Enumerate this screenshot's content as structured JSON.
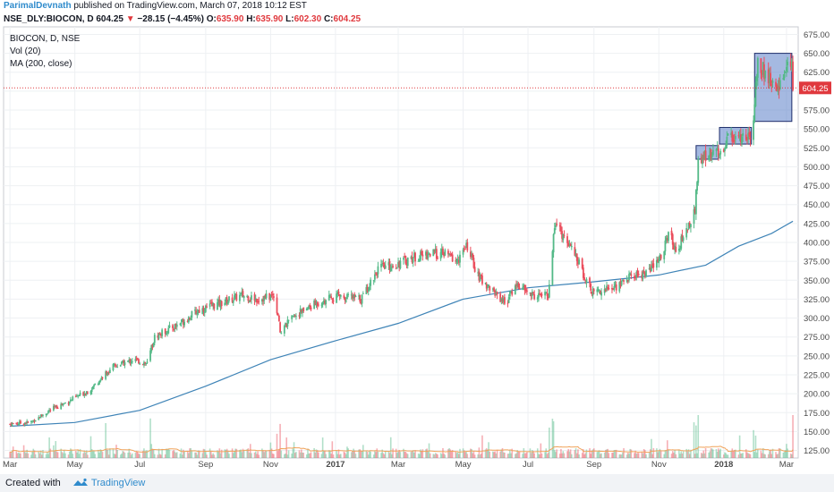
{
  "header": {
    "author": "ParimalDevnath",
    "published_text": " published on TradingView.com, March 07, 2018 10:12 EST",
    "symbol": "NSE_DLY:BIOCON, D",
    "last": "604.25",
    "change": "−28.15 (−4.45%)",
    "o_label": "O:",
    "o_value": "635.90",
    "h_label": "H:",
    "h_value": "635.90",
    "l_label": "L:",
    "l_value": "602.30",
    "c_label": "C:",
    "c_value": "604.25"
  },
  "legend": {
    "line1": "BIOCON, D, NSE",
    "line2": "Vol (20)",
    "line3": "MA (200, close)"
  },
  "footer": {
    "created_with": "Created with",
    "brand": "TradingView"
  },
  "colors": {
    "up": "#53b987",
    "down": "#eb4d5c",
    "ma": "#3f84b7",
    "box_fill": "#5b7fc9",
    "box_stroke": "#1e2d6b",
    "price_line": "#e0393e",
    "grid": "#eef0f3"
  },
  "chart_data": {
    "type": "candlestick",
    "ylim": [
      115,
      685
    ],
    "y_ticks": [
      125,
      150,
      175,
      200,
      225,
      250,
      275,
      300,
      325,
      350,
      375,
      400,
      425,
      450,
      475,
      500,
      525,
      550,
      575,
      600,
      625,
      650,
      675
    ],
    "y_tick_labels": [
      "125.00",
      "150.00",
      "175.00",
      "200.00",
      "225.00",
      "250.00",
      "275.00",
      "300.00",
      "325.00",
      "350.00",
      "375.00",
      "400.00",
      "425.00",
      "450.00",
      "475.00",
      "500.00",
      "525.00",
      "550.00",
      "575.00",
      "600.00",
      "625.00",
      "650.00",
      "675.00"
    ],
    "x_ticks": [
      {
        "label": "Mar",
        "date": "2016-03-01",
        "bold": false
      },
      {
        "label": "May",
        "date": "2016-05-01",
        "bold": false
      },
      {
        "label": "Jul",
        "date": "2016-07-01",
        "bold": false
      },
      {
        "label": "Sep",
        "date": "2016-09-01",
        "bold": false
      },
      {
        "label": "Nov",
        "date": "2016-11-01",
        "bold": false
      },
      {
        "label": "2017",
        "date": "2017-01-01",
        "bold": true
      },
      {
        "label": "Mar",
        "date": "2017-03-01",
        "bold": false
      },
      {
        "label": "May",
        "date": "2017-05-01",
        "bold": false
      },
      {
        "label": "Jul",
        "date": "2017-07-01",
        "bold": false
      },
      {
        "label": "Sep",
        "date": "2017-09-01",
        "bold": false
      },
      {
        "label": "Nov",
        "date": "2017-11-01",
        "bold": false
      },
      {
        "label": "2018",
        "date": "2018-01-01",
        "bold": true
      },
      {
        "label": "Mar",
        "date": "2018-03-01",
        "bold": false
      }
    ],
    "last_price": 604.25,
    "last_price_label": "604.25",
    "price_path": [
      [
        "2016-03-01",
        160
      ],
      [
        "2016-03-20",
        162
      ],
      [
        "2016-04-10",
        180
      ],
      [
        "2016-04-25",
        190
      ],
      [
        "2016-05-15",
        205
      ],
      [
        "2016-06-05",
        235
      ],
      [
        "2016-06-25",
        245
      ],
      [
        "2016-07-08",
        240
      ],
      [
        "2016-07-15",
        275
      ],
      [
        "2016-08-10",
        295
      ],
      [
        "2016-08-25",
        310
      ],
      [
        "2016-09-15",
        320
      ],
      [
        "2016-10-05",
        330
      ],
      [
        "2016-10-20",
        325
      ],
      [
        "2016-11-05",
        330
      ],
      [
        "2016-11-10",
        282
      ],
      [
        "2016-11-25",
        305
      ],
      [
        "2016-12-15",
        320
      ],
      [
        "2017-01-05",
        330
      ],
      [
        "2017-01-25",
        325
      ],
      [
        "2017-02-10",
        365
      ],
      [
        "2017-02-25",
        370
      ],
      [
        "2017-03-15",
        380
      ],
      [
        "2017-03-30",
        385
      ],
      [
        "2017-04-15",
        385
      ],
      [
        "2017-04-25",
        375
      ],
      [
        "2017-05-05",
        395
      ],
      [
        "2017-05-15",
        355
      ],
      [
        "2017-05-30",
        335
      ],
      [
        "2017-06-10",
        320
      ],
      [
        "2017-06-20",
        345
      ],
      [
        "2017-07-05",
        330
      ],
      [
        "2017-07-20",
        330
      ],
      [
        "2017-07-26",
        425
      ],
      [
        "2017-08-05",
        405
      ],
      [
        "2017-08-15",
        380
      ],
      [
        "2017-08-30",
        335
      ],
      [
        "2017-09-20",
        340
      ],
      [
        "2017-10-05",
        355
      ],
      [
        "2017-10-20",
        360
      ],
      [
        "2017-11-01",
        375
      ],
      [
        "2017-11-10",
        410
      ],
      [
        "2017-11-18",
        390
      ],
      [
        "2017-11-28",
        420
      ],
      [
        "2017-12-05",
        440
      ],
      [
        "2017-12-08",
        505
      ],
      [
        "2017-12-20",
        520
      ],
      [
        "2017-12-28",
        515
      ],
      [
        "2018-01-05",
        540
      ],
      [
        "2018-01-20",
        540
      ],
      [
        "2018-01-28",
        545
      ],
      [
        "2018-02-02",
        640
      ],
      [
        "2018-02-10",
        620
      ],
      [
        "2018-02-20",
        600
      ],
      [
        "2018-02-25",
        625
      ],
      [
        "2018-03-01",
        628
      ],
      [
        "2018-03-06",
        632
      ],
      [
        "2018-03-07",
        604.25
      ]
    ],
    "ma_path": [
      [
        "2016-03-01",
        157
      ],
      [
        "2016-05-01",
        162
      ],
      [
        "2016-07-01",
        178
      ],
      [
        "2016-09-01",
        210
      ],
      [
        "2016-11-01",
        245
      ],
      [
        "2017-01-01",
        270
      ],
      [
        "2017-03-01",
        293
      ],
      [
        "2017-05-01",
        325
      ],
      [
        "2017-07-01",
        340
      ],
      [
        "2017-09-01",
        348
      ],
      [
        "2017-11-01",
        357
      ],
      [
        "2017-12-15",
        370
      ],
      [
        "2018-01-15",
        395
      ],
      [
        "2018-02-15",
        412
      ],
      [
        "2018-03-07",
        428
      ]
    ],
    "volume_max_value": 1,
    "boxes": [
      {
        "from": "2017-12-06",
        "to": "2017-12-27",
        "low": 510,
        "high": 528
      },
      {
        "from": "2017-12-28",
        "to": "2018-01-27",
        "low": 530,
        "high": 552
      },
      {
        "from": "2018-01-30",
        "to": "2018-03-06",
        "low": 560,
        "high": 650
      }
    ]
  }
}
